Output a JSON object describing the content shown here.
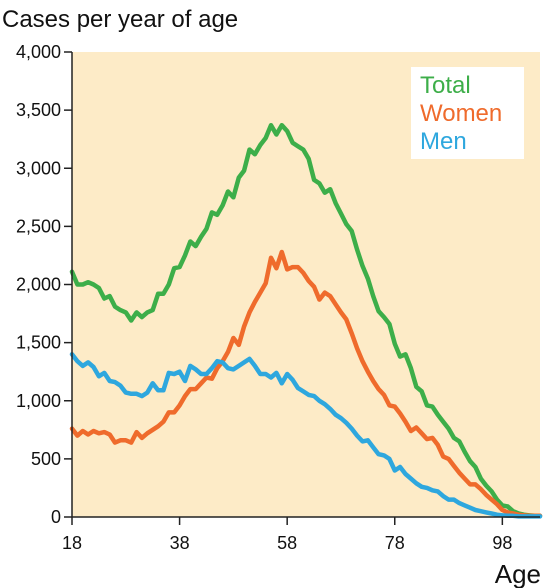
{
  "chart_data": {
    "type": "line",
    "title": "Cases per year of age",
    "xlabel": "Age",
    "ylabel": "",
    "xlim": [
      18,
      105
    ],
    "ylim": [
      0,
      4000
    ],
    "x_ticks": [
      18,
      38,
      58,
      78,
      98
    ],
    "y_ticks": [
      0,
      500,
      1000,
      1500,
      2000,
      2500,
      3000,
      3500,
      4000
    ],
    "y_tick_labels": [
      "0",
      "500",
      "1,000",
      "1,500",
      "2,000",
      "2,500",
      "3,000",
      "3,500",
      "4,000"
    ],
    "plot_background": "#fdebc7",
    "grid": false,
    "legend_position": "top-right",
    "series": [
      {
        "name": "Total",
        "color": "#3dae49",
        "points": [
          [
            18,
            2110
          ],
          [
            19,
            2000
          ],
          [
            20,
            2000
          ],
          [
            21,
            2020
          ],
          [
            22,
            2000
          ],
          [
            23,
            1970
          ],
          [
            24,
            1880
          ],
          [
            25,
            1900
          ],
          [
            26,
            1810
          ],
          [
            27,
            1780
          ],
          [
            28,
            1760
          ],
          [
            29,
            1690
          ],
          [
            30,
            1760
          ],
          [
            31,
            1720
          ],
          [
            32,
            1760
          ],
          [
            33,
            1780
          ],
          [
            34,
            1920
          ],
          [
            35,
            1920
          ],
          [
            36,
            2000
          ],
          [
            37,
            2140
          ],
          [
            38,
            2150
          ],
          [
            39,
            2250
          ],
          [
            40,
            2370
          ],
          [
            41,
            2330
          ],
          [
            42,
            2410
          ],
          [
            43,
            2480
          ],
          [
            44,
            2620
          ],
          [
            45,
            2600
          ],
          [
            46,
            2680
          ],
          [
            47,
            2800
          ],
          [
            48,
            2750
          ],
          [
            49,
            2920
          ],
          [
            50,
            2980
          ],
          [
            51,
            3160
          ],
          [
            52,
            3120
          ],
          [
            53,
            3200
          ],
          [
            54,
            3260
          ],
          [
            55,
            3370
          ],
          [
            56,
            3290
          ],
          [
            57,
            3370
          ],
          [
            58,
            3320
          ],
          [
            59,
            3220
          ],
          [
            60,
            3190
          ],
          [
            61,
            3160
          ],
          [
            62,
            3080
          ],
          [
            63,
            2900
          ],
          [
            64,
            2870
          ],
          [
            65,
            2790
          ],
          [
            66,
            2820
          ],
          [
            67,
            2700
          ],
          [
            68,
            2610
          ],
          [
            69,
            2520
          ],
          [
            70,
            2460
          ],
          [
            71,
            2300
          ],
          [
            72,
            2160
          ],
          [
            73,
            2050
          ],
          [
            74,
            1900
          ],
          [
            75,
            1770
          ],
          [
            76,
            1720
          ],
          [
            77,
            1660
          ],
          [
            78,
            1490
          ],
          [
            79,
            1380
          ],
          [
            80,
            1400
          ],
          [
            81,
            1280
          ],
          [
            82,
            1120
          ],
          [
            83,
            1080
          ],
          [
            84,
            960
          ],
          [
            85,
            950
          ],
          [
            86,
            880
          ],
          [
            87,
            820
          ],
          [
            88,
            760
          ],
          [
            89,
            680
          ],
          [
            90,
            650
          ],
          [
            91,
            560
          ],
          [
            92,
            480
          ],
          [
            93,
            430
          ],
          [
            94,
            330
          ],
          [
            95,
            270
          ],
          [
            96,
            220
          ],
          [
            97,
            150
          ],
          [
            98,
            100
          ],
          [
            99,
            90
          ],
          [
            100,
            50
          ],
          [
            101,
            30
          ],
          [
            102,
            20
          ],
          [
            103,
            15
          ],
          [
            104,
            10
          ],
          [
            105,
            10
          ]
        ]
      },
      {
        "name": "Women",
        "color": "#ef6b2c",
        "points": [
          [
            18,
            760
          ],
          [
            19,
            700
          ],
          [
            20,
            740
          ],
          [
            21,
            710
          ],
          [
            22,
            740
          ],
          [
            23,
            720
          ],
          [
            24,
            730
          ],
          [
            25,
            710
          ],
          [
            26,
            640
          ],
          [
            27,
            660
          ],
          [
            28,
            660
          ],
          [
            29,
            640
          ],
          [
            30,
            730
          ],
          [
            31,
            680
          ],
          [
            32,
            720
          ],
          [
            33,
            750
          ],
          [
            34,
            780
          ],
          [
            35,
            820
          ],
          [
            36,
            900
          ],
          [
            37,
            900
          ],
          [
            38,
            960
          ],
          [
            39,
            1040
          ],
          [
            40,
            1100
          ],
          [
            41,
            1100
          ],
          [
            42,
            1150
          ],
          [
            43,
            1200
          ],
          [
            44,
            1190
          ],
          [
            45,
            1280
          ],
          [
            46,
            1340
          ],
          [
            47,
            1420
          ],
          [
            48,
            1540
          ],
          [
            49,
            1480
          ],
          [
            50,
            1640
          ],
          [
            51,
            1760
          ],
          [
            52,
            1850
          ],
          [
            53,
            1930
          ],
          [
            54,
            2010
          ],
          [
            55,
            2230
          ],
          [
            56,
            2140
          ],
          [
            57,
            2280
          ],
          [
            58,
            2130
          ],
          [
            59,
            2150
          ],
          [
            60,
            2150
          ],
          [
            61,
            2100
          ],
          [
            62,
            2030
          ],
          [
            63,
            1980
          ],
          [
            64,
            1870
          ],
          [
            65,
            1930
          ],
          [
            66,
            1900
          ],
          [
            67,
            1830
          ],
          [
            68,
            1760
          ],
          [
            69,
            1700
          ],
          [
            70,
            1580
          ],
          [
            71,
            1450
          ],
          [
            72,
            1340
          ],
          [
            73,
            1250
          ],
          [
            74,
            1170
          ],
          [
            75,
            1100
          ],
          [
            76,
            1050
          ],
          [
            77,
            960
          ],
          [
            78,
            950
          ],
          [
            79,
            890
          ],
          [
            80,
            820
          ],
          [
            81,
            740
          ],
          [
            82,
            770
          ],
          [
            83,
            720
          ],
          [
            84,
            670
          ],
          [
            85,
            680
          ],
          [
            86,
            620
          ],
          [
            87,
            520
          ],
          [
            88,
            500
          ],
          [
            89,
            440
          ],
          [
            90,
            380
          ],
          [
            91,
            330
          ],
          [
            92,
            280
          ],
          [
            93,
            280
          ],
          [
            94,
            240
          ],
          [
            95,
            190
          ],
          [
            96,
            150
          ],
          [
            97,
            110
          ],
          [
            98,
            60
          ],
          [
            99,
            40
          ],
          [
            100,
            30
          ],
          [
            101,
            20
          ],
          [
            102,
            15
          ],
          [
            103,
            10
          ],
          [
            104,
            10
          ],
          [
            105,
            10
          ]
        ]
      },
      {
        "name": "Men",
        "color": "#2ea7de",
        "points": [
          [
            18,
            1400
          ],
          [
            19,
            1340
          ],
          [
            20,
            1300
          ],
          [
            21,
            1330
          ],
          [
            22,
            1290
          ],
          [
            23,
            1210
          ],
          [
            24,
            1240
          ],
          [
            25,
            1170
          ],
          [
            26,
            1160
          ],
          [
            27,
            1130
          ],
          [
            28,
            1070
          ],
          [
            29,
            1060
          ],
          [
            30,
            1060
          ],
          [
            31,
            1040
          ],
          [
            32,
            1070
          ],
          [
            33,
            1150
          ],
          [
            34,
            1090
          ],
          [
            35,
            1090
          ],
          [
            36,
            1240
          ],
          [
            37,
            1230
          ],
          [
            38,
            1250
          ],
          [
            39,
            1170
          ],
          [
            40,
            1300
          ],
          [
            41,
            1270
          ],
          [
            42,
            1230
          ],
          [
            43,
            1230
          ],
          [
            44,
            1280
          ],
          [
            45,
            1340
          ],
          [
            46,
            1330
          ],
          [
            47,
            1280
          ],
          [
            48,
            1270
          ],
          [
            49,
            1300
          ],
          [
            50,
            1330
          ],
          [
            51,
            1360
          ],
          [
            52,
            1300
          ],
          [
            53,
            1230
          ],
          [
            54,
            1230
          ],
          [
            55,
            1200
          ],
          [
            56,
            1240
          ],
          [
            57,
            1150
          ],
          [
            58,
            1230
          ],
          [
            59,
            1180
          ],
          [
            60,
            1110
          ],
          [
            61,
            1080
          ],
          [
            62,
            1050
          ],
          [
            63,
            1040
          ],
          [
            64,
            1000
          ],
          [
            65,
            970
          ],
          [
            66,
            930
          ],
          [
            67,
            880
          ],
          [
            68,
            850
          ],
          [
            69,
            810
          ],
          [
            70,
            760
          ],
          [
            71,
            700
          ],
          [
            72,
            650
          ],
          [
            73,
            660
          ],
          [
            74,
            600
          ],
          [
            75,
            540
          ],
          [
            76,
            530
          ],
          [
            77,
            500
          ],
          [
            78,
            400
          ],
          [
            79,
            430
          ],
          [
            80,
            370
          ],
          [
            81,
            330
          ],
          [
            82,
            290
          ],
          [
            83,
            260
          ],
          [
            84,
            250
          ],
          [
            85,
            230
          ],
          [
            86,
            220
          ],
          [
            87,
            180
          ],
          [
            88,
            150
          ],
          [
            89,
            150
          ],
          [
            90,
            120
          ],
          [
            91,
            100
          ],
          [
            92,
            80
          ],
          [
            93,
            60
          ],
          [
            94,
            50
          ],
          [
            95,
            40
          ],
          [
            96,
            30
          ],
          [
            97,
            20
          ],
          [
            98,
            15
          ],
          [
            99,
            10
          ],
          [
            100,
            10
          ],
          [
            101,
            5
          ],
          [
            102,
            5
          ],
          [
            103,
            5
          ],
          [
            104,
            5
          ],
          [
            105,
            5
          ]
        ]
      }
    ]
  }
}
